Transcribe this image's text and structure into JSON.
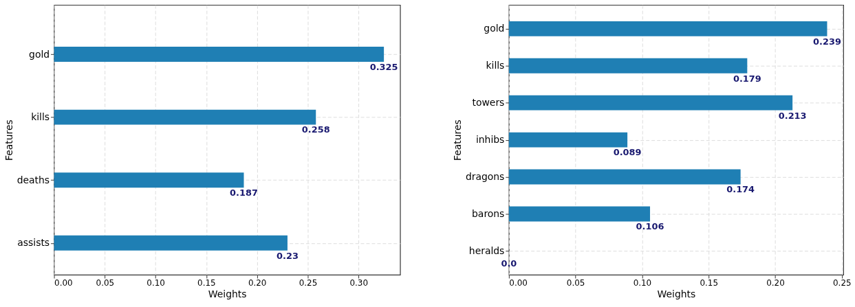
{
  "chart_data": [
    {
      "type": "bar",
      "orientation": "horizontal",
      "xlabel": "Weights",
      "ylabel": "Features",
      "categories": [
        "gold",
        "kills",
        "deaths",
        "assists"
      ],
      "values": [
        0.325,
        0.258,
        0.187,
        0.23
      ],
      "color": "#1f7fb4",
      "value_labels": [
        "0.325",
        "0.258",
        "0.187",
        "0.23"
      ],
      "xlim": [
        0,
        0.341
      ],
      "xticks": [
        {
          "value": 0,
          "label": "0.00"
        },
        0.05,
        {
          "value": 0.1,
          "label": "0.10"
        },
        0.15,
        {
          "value": 0.2,
          "label": "0.20"
        },
        0.25,
        {
          "value": 0.3,
          "label": "0.30"
        }
      ],
      "grid": true
    },
    {
      "type": "bar",
      "orientation": "horizontal",
      "xlabel": "Weights",
      "ylabel": "Features",
      "categories": [
        "gold",
        "kills",
        "towers",
        "inhibs",
        "dragons",
        "barons",
        "heralds"
      ],
      "values": [
        0.239,
        0.179,
        0.213,
        0.089,
        0.174,
        0.106,
        0.0
      ],
      "color": "#1f7fb4",
      "value_labels": [
        "0.239",
        "0.179",
        "0.213",
        "0.089",
        "0.174",
        "0.106",
        "0.0"
      ],
      "xlim": [
        0,
        0.2512
      ],
      "xticks": [
        {
          "value": 0,
          "label": "0.00"
        },
        0.05,
        {
          "value": 0.1,
          "label": "0.10"
        },
        0.15,
        {
          "value": 0.2,
          "label": "0.20"
        },
        0.25
      ],
      "grid": true
    }
  ]
}
